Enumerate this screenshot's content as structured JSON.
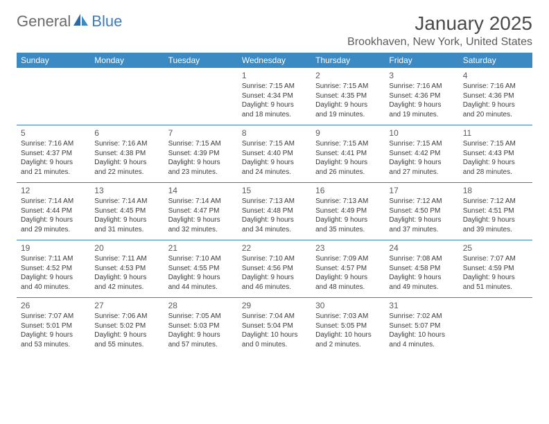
{
  "logo": {
    "text1": "General",
    "text2": "Blue"
  },
  "title": "January 2025",
  "location": "Brookhaven, New York, United States",
  "colors": {
    "header_bg": "#3b8ac4",
    "header_text": "#ffffff",
    "accent": "#3b7bbf",
    "logo_gray": "#6a6a6a",
    "body_text": "#3a3a3a",
    "daynum_text": "#5a5a5a",
    "title_text": "#4a4a4a"
  },
  "weekdays": [
    "Sunday",
    "Monday",
    "Tuesday",
    "Wednesday",
    "Thursday",
    "Friday",
    "Saturday"
  ],
  "weeks": [
    [
      null,
      null,
      null,
      {
        "num": "1",
        "sunrise": "7:15 AM",
        "sunset": "4:34 PM",
        "daylight": "9 hours and 18 minutes."
      },
      {
        "num": "2",
        "sunrise": "7:15 AM",
        "sunset": "4:35 PM",
        "daylight": "9 hours and 19 minutes."
      },
      {
        "num": "3",
        "sunrise": "7:16 AM",
        "sunset": "4:36 PM",
        "daylight": "9 hours and 19 minutes."
      },
      {
        "num": "4",
        "sunrise": "7:16 AM",
        "sunset": "4:36 PM",
        "daylight": "9 hours and 20 minutes."
      }
    ],
    [
      {
        "num": "5",
        "sunrise": "7:16 AM",
        "sunset": "4:37 PM",
        "daylight": "9 hours and 21 minutes."
      },
      {
        "num": "6",
        "sunrise": "7:16 AM",
        "sunset": "4:38 PM",
        "daylight": "9 hours and 22 minutes."
      },
      {
        "num": "7",
        "sunrise": "7:15 AM",
        "sunset": "4:39 PM",
        "daylight": "9 hours and 23 minutes."
      },
      {
        "num": "8",
        "sunrise": "7:15 AM",
        "sunset": "4:40 PM",
        "daylight": "9 hours and 24 minutes."
      },
      {
        "num": "9",
        "sunrise": "7:15 AM",
        "sunset": "4:41 PM",
        "daylight": "9 hours and 26 minutes."
      },
      {
        "num": "10",
        "sunrise": "7:15 AM",
        "sunset": "4:42 PM",
        "daylight": "9 hours and 27 minutes."
      },
      {
        "num": "11",
        "sunrise": "7:15 AM",
        "sunset": "4:43 PM",
        "daylight": "9 hours and 28 minutes."
      }
    ],
    [
      {
        "num": "12",
        "sunrise": "7:14 AM",
        "sunset": "4:44 PM",
        "daylight": "9 hours and 29 minutes."
      },
      {
        "num": "13",
        "sunrise": "7:14 AM",
        "sunset": "4:45 PM",
        "daylight": "9 hours and 31 minutes."
      },
      {
        "num": "14",
        "sunrise": "7:14 AM",
        "sunset": "4:47 PM",
        "daylight": "9 hours and 32 minutes."
      },
      {
        "num": "15",
        "sunrise": "7:13 AM",
        "sunset": "4:48 PM",
        "daylight": "9 hours and 34 minutes."
      },
      {
        "num": "16",
        "sunrise": "7:13 AM",
        "sunset": "4:49 PM",
        "daylight": "9 hours and 35 minutes."
      },
      {
        "num": "17",
        "sunrise": "7:12 AM",
        "sunset": "4:50 PM",
        "daylight": "9 hours and 37 minutes."
      },
      {
        "num": "18",
        "sunrise": "7:12 AM",
        "sunset": "4:51 PM",
        "daylight": "9 hours and 39 minutes."
      }
    ],
    [
      {
        "num": "19",
        "sunrise": "7:11 AM",
        "sunset": "4:52 PM",
        "daylight": "9 hours and 40 minutes."
      },
      {
        "num": "20",
        "sunrise": "7:11 AM",
        "sunset": "4:53 PM",
        "daylight": "9 hours and 42 minutes."
      },
      {
        "num": "21",
        "sunrise": "7:10 AM",
        "sunset": "4:55 PM",
        "daylight": "9 hours and 44 minutes."
      },
      {
        "num": "22",
        "sunrise": "7:10 AM",
        "sunset": "4:56 PM",
        "daylight": "9 hours and 46 minutes."
      },
      {
        "num": "23",
        "sunrise": "7:09 AM",
        "sunset": "4:57 PM",
        "daylight": "9 hours and 48 minutes."
      },
      {
        "num": "24",
        "sunrise": "7:08 AM",
        "sunset": "4:58 PM",
        "daylight": "9 hours and 49 minutes."
      },
      {
        "num": "25",
        "sunrise": "7:07 AM",
        "sunset": "4:59 PM",
        "daylight": "9 hours and 51 minutes."
      }
    ],
    [
      {
        "num": "26",
        "sunrise": "7:07 AM",
        "sunset": "5:01 PM",
        "daylight": "9 hours and 53 minutes."
      },
      {
        "num": "27",
        "sunrise": "7:06 AM",
        "sunset": "5:02 PM",
        "daylight": "9 hours and 55 minutes."
      },
      {
        "num": "28",
        "sunrise": "7:05 AM",
        "sunset": "5:03 PM",
        "daylight": "9 hours and 57 minutes."
      },
      {
        "num": "29",
        "sunrise": "7:04 AM",
        "sunset": "5:04 PM",
        "daylight": "10 hours and 0 minutes."
      },
      {
        "num": "30",
        "sunrise": "7:03 AM",
        "sunset": "5:05 PM",
        "daylight": "10 hours and 2 minutes."
      },
      {
        "num": "31",
        "sunrise": "7:02 AM",
        "sunset": "5:07 PM",
        "daylight": "10 hours and 4 minutes."
      },
      null
    ]
  ],
  "labels": {
    "sunrise": "Sunrise:",
    "sunset": "Sunset:",
    "daylight": "Daylight:"
  }
}
